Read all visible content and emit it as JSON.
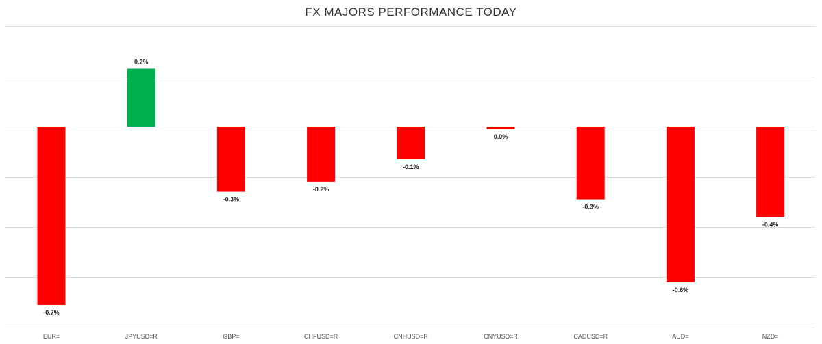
{
  "chart_data": {
    "type": "bar",
    "title": "FX MAJORS PERFORMANCE TODAY",
    "xlabel": "",
    "ylabel": "",
    "categories": [
      "EUR=",
      "JPYUSD=R",
      "GBP=",
      "CHFUSD=R",
      "CNHUSD=R",
      "CNYUSD=R",
      "CADUSD=R",
      "AUD=",
      "NZD="
    ],
    "values": [
      -0.71,
      0.23,
      -0.26,
      -0.22,
      -0.13,
      -0.01,
      -0.29,
      -0.62,
      -0.36
    ],
    "data_labels": [
      "-0.7%",
      "0.2%",
      "-0.3%",
      "-0.2%",
      "-0.1%",
      "0.0%",
      "-0.3%",
      "-0.6%",
      "-0.4%"
    ],
    "ylim": [
      -0.8,
      0.4
    ],
    "yticks": [
      0.4,
      0.2,
      0.0,
      -0.2,
      -0.4,
      -0.6,
      -0.8
    ],
    "grid": true,
    "legend": "none",
    "colors": {
      "positive": "#00b050",
      "negative": "#ff0000",
      "grid": "#dddddd",
      "title": "#333333"
    }
  }
}
